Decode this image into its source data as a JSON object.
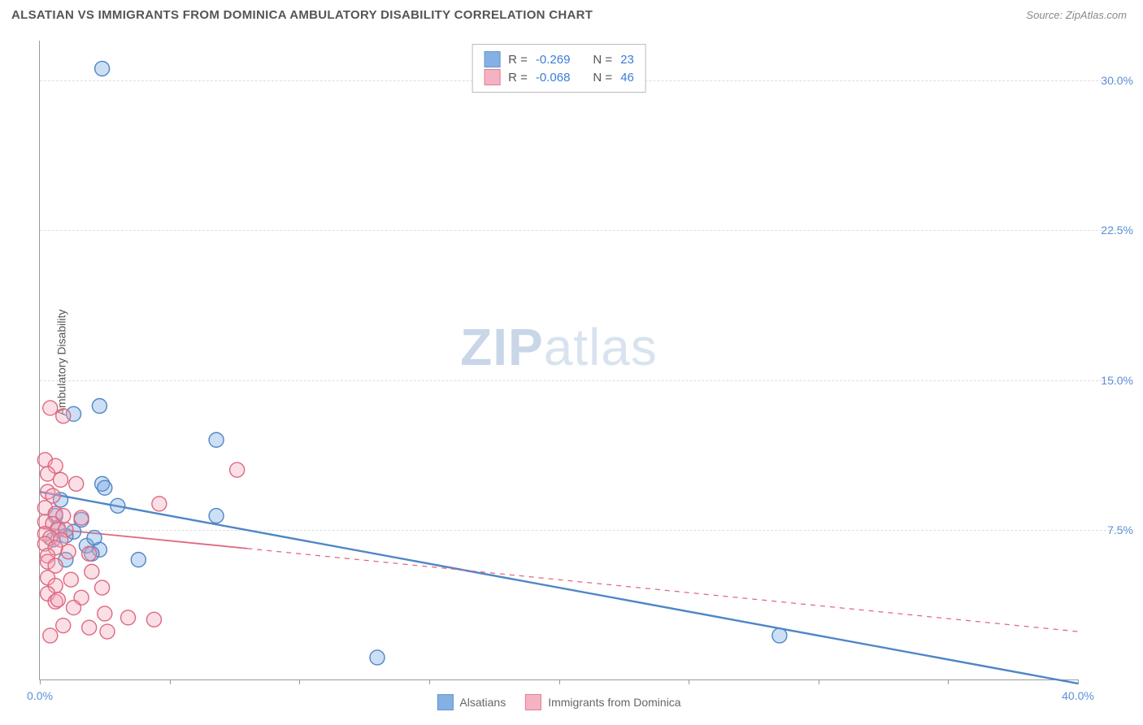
{
  "header": {
    "title": "ALSATIAN VS IMMIGRANTS FROM DOMINICA AMBULATORY DISABILITY CORRELATION CHART",
    "source_label": "Source:",
    "source_name": "ZipAtlas.com"
  },
  "watermark": {
    "bold": "ZIP",
    "light": "atlas"
  },
  "chart": {
    "type": "scatter",
    "ylabel": "Ambulatory Disability",
    "xlim": [
      0,
      40
    ],
    "ylim": [
      0,
      32
    ],
    "xtick_positions": [
      0,
      5,
      10,
      15,
      20,
      25,
      30,
      35,
      40
    ],
    "xtick_labels_shown": {
      "0": "0.0%",
      "40": "40.0%"
    },
    "ytick_positions": [
      7.5,
      15.0,
      22.5,
      30.0
    ],
    "ytick_labels": [
      "7.5%",
      "15.0%",
      "22.5%",
      "30.0%"
    ],
    "grid_color": "#dddddd",
    "axis_color": "#999999",
    "background_color": "#ffffff",
    "marker_radius": 9,
    "marker_fill_opacity": 0.35,
    "marker_stroke_width": 1.4,
    "series": [
      {
        "id": "alsatians",
        "label": "Alsatians",
        "color": "#6fa3e0",
        "stroke": "#4f86c6",
        "R": "-0.269",
        "N": "23",
        "trend": {
          "y_at_x0": 9.4,
          "y_at_x40": -0.2,
          "solid_until_x": 40,
          "line_width": 2.4
        },
        "points": [
          [
            2.4,
            30.6
          ],
          [
            2.3,
            13.7
          ],
          [
            1.3,
            13.3
          ],
          [
            6.8,
            12.0
          ],
          [
            2.4,
            9.8
          ],
          [
            2.5,
            9.6
          ],
          [
            0.8,
            9.0
          ],
          [
            3.0,
            8.7
          ],
          [
            6.8,
            8.2
          ],
          [
            0.7,
            7.6
          ],
          [
            1.3,
            7.4
          ],
          [
            1.0,
            7.2
          ],
          [
            0.5,
            7.0
          ],
          [
            1.8,
            6.7
          ],
          [
            2.3,
            6.5
          ],
          [
            2.0,
            6.3
          ],
          [
            3.8,
            6.0
          ],
          [
            1.0,
            6.0
          ],
          [
            13.0,
            1.1
          ],
          [
            28.5,
            2.2
          ],
          [
            0.6,
            8.2
          ],
          [
            1.6,
            8.0
          ],
          [
            2.1,
            7.1
          ]
        ]
      },
      {
        "id": "dominica",
        "label": "Immigrants from Dominica",
        "color": "#f2a6b8",
        "stroke": "#e0677f",
        "R": "-0.068",
        "N": "46",
        "trend": {
          "y_at_x0": 7.6,
          "y_at_x40": 2.4,
          "solid_until_x": 8,
          "line_width": 1.8
        },
        "points": [
          [
            0.4,
            13.6
          ],
          [
            0.9,
            13.2
          ],
          [
            0.2,
            11.0
          ],
          [
            0.6,
            10.7
          ],
          [
            7.6,
            10.5
          ],
          [
            0.3,
            10.3
          ],
          [
            0.8,
            10.0
          ],
          [
            1.4,
            9.8
          ],
          [
            0.3,
            9.4
          ],
          [
            0.5,
            9.2
          ],
          [
            4.6,
            8.8
          ],
          [
            0.2,
            8.6
          ],
          [
            0.6,
            8.3
          ],
          [
            0.9,
            8.2
          ],
          [
            1.6,
            8.1
          ],
          [
            0.2,
            7.9
          ],
          [
            0.5,
            7.8
          ],
          [
            0.7,
            7.5
          ],
          [
            1.0,
            7.5
          ],
          [
            0.2,
            7.3
          ],
          [
            0.4,
            7.1
          ],
          [
            0.8,
            7.0
          ],
          [
            0.2,
            6.8
          ],
          [
            0.6,
            6.6
          ],
          [
            1.1,
            6.4
          ],
          [
            0.3,
            6.2
          ],
          [
            1.9,
            6.3
          ],
          [
            0.3,
            5.9
          ],
          [
            0.6,
            5.7
          ],
          [
            2.0,
            5.4
          ],
          [
            0.3,
            5.1
          ],
          [
            1.2,
            5.0
          ],
          [
            0.6,
            4.7
          ],
          [
            2.4,
            4.6
          ],
          [
            0.3,
            4.3
          ],
          [
            1.6,
            4.1
          ],
          [
            0.6,
            3.9
          ],
          [
            2.5,
            3.3
          ],
          [
            3.4,
            3.1
          ],
          [
            4.4,
            3.0
          ],
          [
            0.9,
            2.7
          ],
          [
            1.9,
            2.6
          ],
          [
            2.6,
            2.4
          ],
          [
            0.4,
            2.2
          ],
          [
            1.3,
            3.6
          ],
          [
            0.7,
            4.0
          ]
        ]
      }
    ]
  },
  "stats_box": {
    "r_label": "R =",
    "n_label": "N ="
  }
}
